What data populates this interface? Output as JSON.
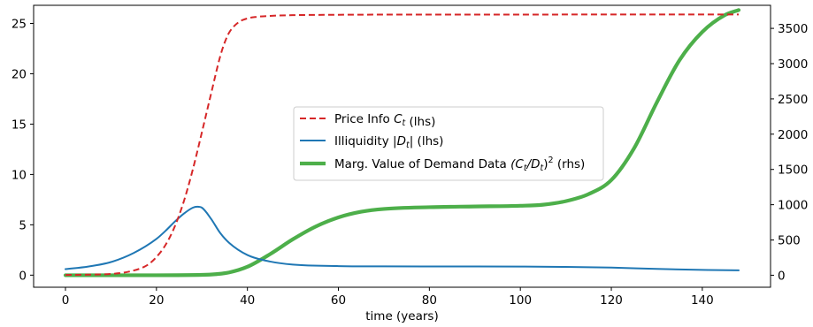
{
  "chart_data": {
    "type": "line",
    "title": "",
    "xlabel": "time (years)",
    "ylabel_left": "",
    "ylabel_right": "",
    "xlim": [
      -7,
      155
    ],
    "xticks": [
      0,
      20,
      40,
      60,
      80,
      100,
      120,
      140
    ],
    "ylim_left": [
      -1.2,
      26.8
    ],
    "yticks_left": [
      0,
      5,
      10,
      15,
      20,
      25
    ],
    "ylim_right": [
      -170,
      3827
    ],
    "yticks_right": [
      0,
      500,
      1000,
      1500,
      2000,
      2500,
      3000,
      3500
    ],
    "grid": false,
    "legend_placement": "center",
    "legend": [
      {
        "label": "Price Info",
        "math": "C",
        "sub": "t",
        "suffix": " (lhs)",
        "series": "price_info"
      },
      {
        "label": "Illiquidity ",
        "math": "|D",
        "sub": "t",
        "tail": "|",
        "suffix": " (lhs)",
        "series": "illiquidity"
      },
      {
        "label": "Marg. Value of Demand Data ",
        "math": "(C",
        "sub": "t",
        "mid": "/D",
        "sub2": "t",
        "tail": ")",
        "sup": "2",
        "suffix": " (rhs)",
        "series": "marg_value"
      }
    ],
    "series": [
      {
        "id": "price_info",
        "axis": "left",
        "color": "#d62728",
        "style": "dashed",
        "x": [
          0,
          5,
          10,
          14,
          18,
          20,
          22,
          24,
          26,
          28,
          30,
          32,
          34,
          35,
          36,
          38,
          40,
          42,
          45,
          50,
          60,
          80,
          100,
          120,
          140,
          148
        ],
        "values": [
          0.02,
          0.05,
          0.12,
          0.35,
          1.0,
          1.8,
          3.0,
          4.8,
          7.3,
          10.5,
          14.2,
          18.0,
          21.7,
          23.1,
          24.1,
          25.1,
          25.5,
          25.65,
          25.75,
          25.82,
          25.86,
          25.88,
          25.88,
          25.89,
          25.89,
          25.89
        ]
      },
      {
        "id": "illiquidity",
        "axis": "left",
        "color": "#1f77b4",
        "style": "solid",
        "x": [
          0,
          5,
          10,
          15,
          20,
          22,
          24,
          26,
          28,
          29,
          30,
          32,
          34,
          36,
          40,
          45,
          50,
          60,
          70,
          80,
          90,
          100,
          110,
          120,
          130,
          140,
          148
        ],
        "values": [
          0.6,
          0.85,
          1.3,
          2.2,
          3.6,
          4.4,
          5.3,
          6.1,
          6.7,
          6.8,
          6.7,
          5.6,
          4.2,
          3.2,
          2.0,
          1.35,
          1.05,
          0.9,
          0.87,
          0.86,
          0.86,
          0.85,
          0.82,
          0.75,
          0.62,
          0.52,
          0.48
        ]
      },
      {
        "id": "marg_value",
        "axis": "right",
        "color": "#4daf4a",
        "style": "solid-thick",
        "x": [
          0,
          20,
          30,
          33,
          36,
          40,
          45,
          50,
          55,
          60,
          65,
          70,
          80,
          90,
          100,
          105,
          110,
          115,
          120,
          125,
          130,
          135,
          140,
          145,
          148
        ],
        "values": [
          0,
          0,
          5,
          15,
          40,
          120,
          300,
          510,
          690,
          820,
          900,
          940,
          965,
          975,
          985,
          1000,
          1050,
          1150,
          1350,
          1800,
          2450,
          3050,
          3450,
          3690,
          3760
        ]
      }
    ]
  }
}
